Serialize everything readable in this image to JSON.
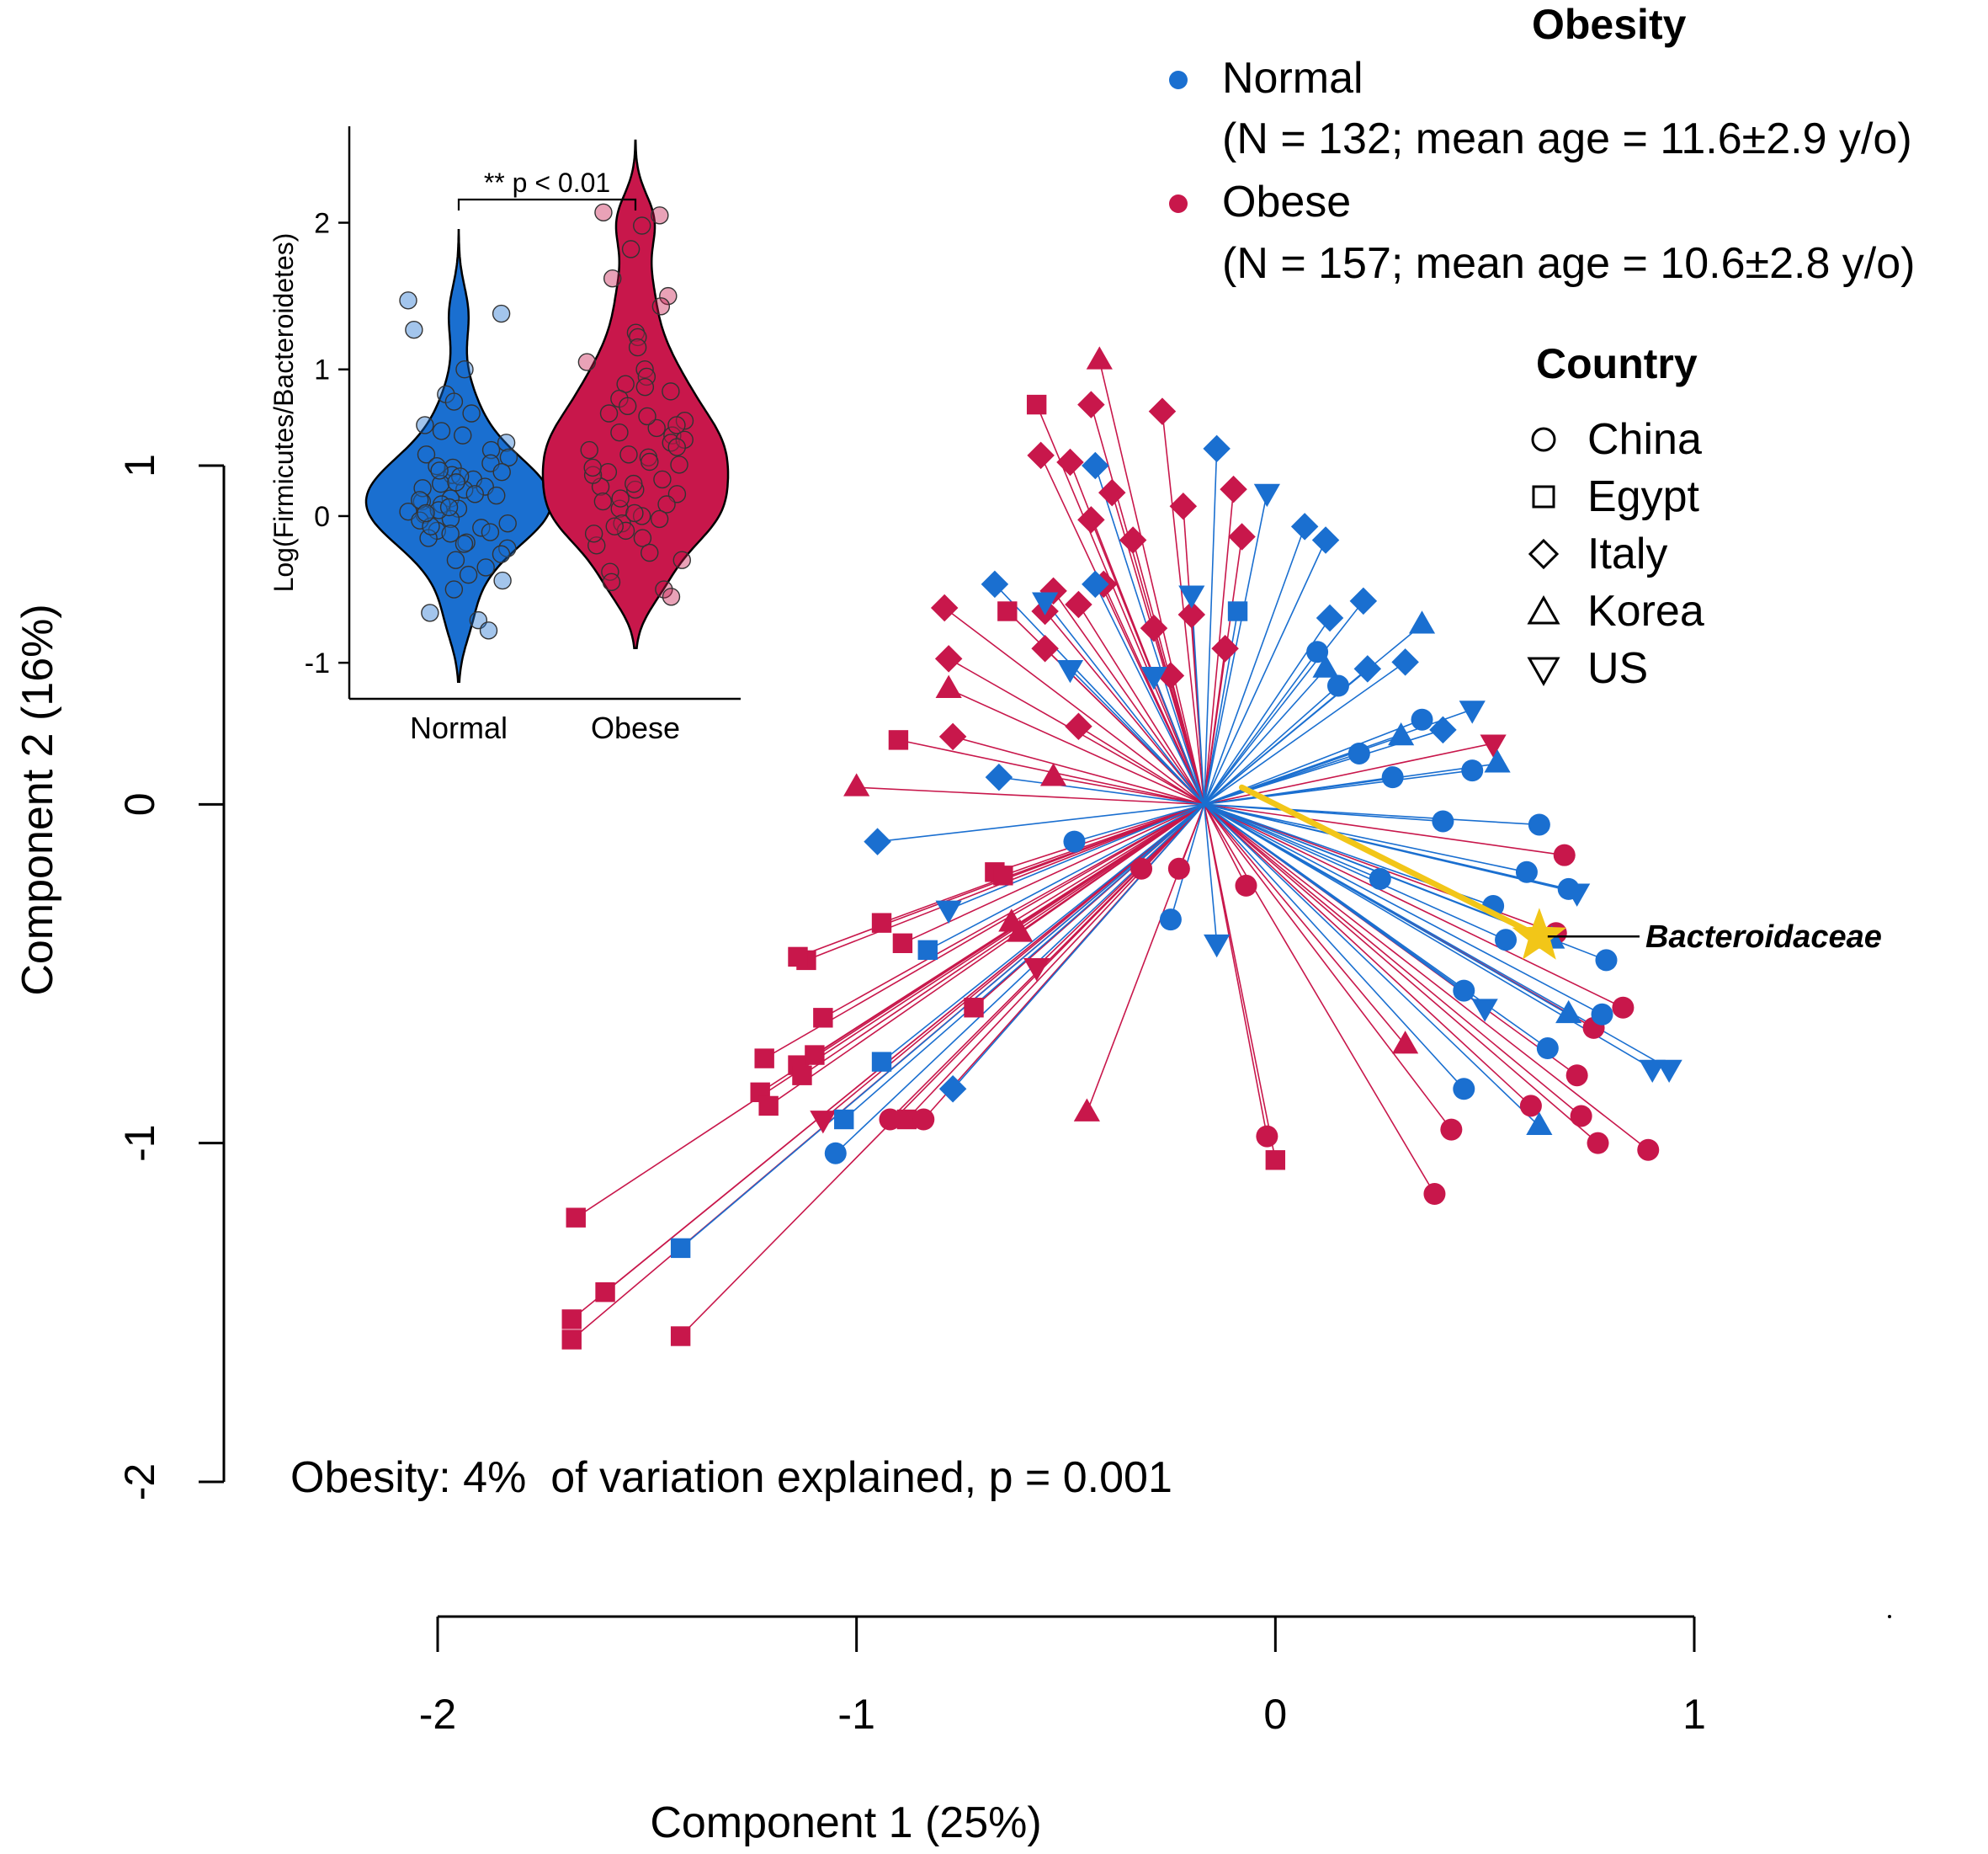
{
  "chart_data": {
    "type": "scatter",
    "subtype": "PCoA biplot with spider lines to group centroid",
    "xlabel": "Component 1 (25%)",
    "ylabel": "Component 2 (16%)",
    "xlim": [
      -2,
      1
    ],
    "ylim": [
      -2,
      1
    ],
    "xticks": [
      "-2",
      "-1",
      "0",
      "1"
    ],
    "yticks": [
      "-2",
      "-1",
      "0",
      "1"
    ],
    "centroid": [
      -0.17,
      0.0
    ],
    "annotation": "Obesity: 4%  of variation explained, p = 0.001",
    "vector": {
      "label": "Bacteroidaceae",
      "from": [
        -0.08,
        0.05
      ],
      "to": [
        0.63,
        -0.39
      ],
      "color": "#f2c618"
    },
    "legend_obesity": {
      "title": "Obesity",
      "items": [
        {
          "name": "Normal",
          "detail": "(N = 132; mean age = 11.6±2.9 y/o)",
          "color": "#1a6fd0"
        },
        {
          "name": "Obese",
          "detail": "(N = 157; mean age = 10.6±2.8 y/o)",
          "color": "#c8174b"
        }
      ]
    },
    "legend_country": {
      "title": "Country",
      "items": [
        {
          "name": "China",
          "shape": "circle"
        },
        {
          "name": "Egypt",
          "shape": "square"
        },
        {
          "name": "Italy",
          "shape": "diamond"
        },
        {
          "name": "Korea",
          "shape": "triangle"
        },
        {
          "name": "US",
          "shape": "triangle-down"
        }
      ]
    },
    "series": [
      {
        "name": "Obese",
        "color": "#c8174b",
        "points": [
          {
            "x": -1.67,
            "y": -1.22,
            "shape": "square"
          },
          {
            "x": -1.68,
            "y": -1.52,
            "shape": "square"
          },
          {
            "x": -1.68,
            "y": -1.58,
            "shape": "square"
          },
          {
            "x": -1.6,
            "y": -1.44,
            "shape": "square"
          },
          {
            "x": -1.42,
            "y": -1.57,
            "shape": "square"
          },
          {
            "x": -1.22,
            "y": -0.75,
            "shape": "square"
          },
          {
            "x": -1.23,
            "y": -0.85,
            "shape": "square"
          },
          {
            "x": -1.21,
            "y": -0.89,
            "shape": "square"
          },
          {
            "x": -1.14,
            "y": -0.77,
            "shape": "square"
          },
          {
            "x": -1.13,
            "y": -0.8,
            "shape": "square"
          },
          {
            "x": -1.08,
            "y": -0.63,
            "shape": "square"
          },
          {
            "x": -1.1,
            "y": -0.74,
            "shape": "square"
          },
          {
            "x": -1.12,
            "y": -0.46,
            "shape": "square"
          },
          {
            "x": -1.14,
            "y": -0.45,
            "shape": "square"
          },
          {
            "x": -0.94,
            "y": -0.35,
            "shape": "square"
          },
          {
            "x": -0.89,
            "y": -0.41,
            "shape": "square"
          },
          {
            "x": -0.88,
            "y": -0.93,
            "shape": "square"
          },
          {
            "x": -0.72,
            "y": -0.6,
            "shape": "square"
          },
          {
            "x": -0.67,
            "y": -0.2,
            "shape": "square"
          },
          {
            "x": -0.65,
            "y": -0.21,
            "shape": "square"
          },
          {
            "x": -0.9,
            "y": 0.19,
            "shape": "square"
          },
          {
            "x": -0.64,
            "y": 0.57,
            "shape": "square"
          },
          {
            "x": -0.57,
            "y": 1.18,
            "shape": "square"
          },
          {
            "x": 0.0,
            "y": -1.05,
            "shape": "square"
          },
          {
            "x": -1.0,
            "y": 0.05,
            "shape": "triangle"
          },
          {
            "x": -0.53,
            "y": 0.08,
            "shape": "triangle"
          },
          {
            "x": -0.63,
            "y": -0.35,
            "shape": "triangle"
          },
          {
            "x": -0.61,
            "y": -0.38,
            "shape": "triangle"
          },
          {
            "x": -0.45,
            "y": -0.91,
            "shape": "triangle"
          },
          {
            "x": -0.42,
            "y": 1.31,
            "shape": "triangle"
          },
          {
            "x": 0.31,
            "y": -0.71,
            "shape": "triangle"
          },
          {
            "x": -0.78,
            "y": 0.34,
            "shape": "triangle"
          },
          {
            "x": -1.08,
            "y": -0.93,
            "shape": "triangle-down"
          },
          {
            "x": -0.57,
            "y": -0.48,
            "shape": "triangle-down"
          },
          {
            "x": 0.52,
            "y": 0.18,
            "shape": "triangle-down"
          },
          {
            "x": -0.79,
            "y": 0.58,
            "shape": "diamond"
          },
          {
            "x": -0.78,
            "y": 0.43,
            "shape": "diamond"
          },
          {
            "x": -0.55,
            "y": 0.46,
            "shape": "diamond"
          },
          {
            "x": -0.53,
            "y": 0.63,
            "shape": "diamond"
          },
          {
            "x": -0.47,
            "y": 0.59,
            "shape": "diamond"
          },
          {
            "x": -0.44,
            "y": 1.18,
            "shape": "diamond"
          },
          {
            "x": -0.27,
            "y": 1.16,
            "shape": "diamond"
          },
          {
            "x": -0.56,
            "y": 1.03,
            "shape": "diamond"
          },
          {
            "x": -0.49,
            "y": 1.01,
            "shape": "diamond"
          },
          {
            "x": -0.39,
            "y": 0.92,
            "shape": "diamond"
          },
          {
            "x": -0.47,
            "y": 0.23,
            "shape": "diamond"
          },
          {
            "x": -0.44,
            "y": 0.84,
            "shape": "diamond"
          },
          {
            "x": -0.34,
            "y": 0.78,
            "shape": "diamond"
          },
          {
            "x": -0.22,
            "y": 0.88,
            "shape": "diamond"
          },
          {
            "x": -0.1,
            "y": 0.93,
            "shape": "diamond"
          },
          {
            "x": -0.08,
            "y": 0.79,
            "shape": "diamond"
          },
          {
            "x": -0.2,
            "y": 0.56,
            "shape": "diamond"
          },
          {
            "x": -0.12,
            "y": 0.46,
            "shape": "diamond"
          },
          {
            "x": -0.41,
            "y": 0.65,
            "shape": "diamond"
          },
          {
            "x": -0.29,
            "y": 0.52,
            "shape": "diamond"
          },
          {
            "x": -0.25,
            "y": 0.38,
            "shape": "diamond"
          },
          {
            "x": -0.77,
            "y": 0.2,
            "shape": "diamond"
          },
          {
            "x": -0.55,
            "y": 0.57,
            "shape": "diamond"
          },
          {
            "x": -0.92,
            "y": -0.93,
            "shape": "circle"
          },
          {
            "x": -0.84,
            "y": -0.93,
            "shape": "circle"
          },
          {
            "x": -0.02,
            "y": -0.98,
            "shape": "circle"
          },
          {
            "x": 0.38,
            "y": -1.15,
            "shape": "circle"
          },
          {
            "x": 0.42,
            "y": -0.96,
            "shape": "circle"
          },
          {
            "x": 0.61,
            "y": -0.89,
            "shape": "circle"
          },
          {
            "x": 0.73,
            "y": -0.92,
            "shape": "circle"
          },
          {
            "x": 0.77,
            "y": -1.0,
            "shape": "circle"
          },
          {
            "x": 0.89,
            "y": -1.02,
            "shape": "circle"
          },
          {
            "x": 0.72,
            "y": -0.8,
            "shape": "circle"
          },
          {
            "x": 0.76,
            "y": -0.66,
            "shape": "circle"
          },
          {
            "x": 0.83,
            "y": -0.6,
            "shape": "circle"
          },
          {
            "x": 0.67,
            "y": -0.38,
            "shape": "circle"
          },
          {
            "x": -0.23,
            "y": -0.19,
            "shape": "circle"
          },
          {
            "x": -0.32,
            "y": -0.19,
            "shape": "circle"
          },
          {
            "x": -0.07,
            "y": -0.24,
            "shape": "circle"
          },
          {
            "x": 0.69,
            "y": -0.15,
            "shape": "circle"
          }
        ]
      },
      {
        "name": "Normal",
        "color": "#1a6fd0",
        "points": [
          {
            "x": -1.42,
            "y": -1.31,
            "shape": "square"
          },
          {
            "x": -1.03,
            "y": -0.93,
            "shape": "square"
          },
          {
            "x": -0.83,
            "y": -0.43,
            "shape": "square"
          },
          {
            "x": -0.94,
            "y": -0.76,
            "shape": "square"
          },
          {
            "x": -0.09,
            "y": 0.57,
            "shape": "square"
          },
          {
            "x": -1.05,
            "y": -1.03,
            "shape": "circle"
          },
          {
            "x": -0.48,
            "y": -0.11,
            "shape": "circle"
          },
          {
            "x": -0.25,
            "y": -0.34,
            "shape": "circle"
          },
          {
            "x": 0.45,
            "y": -0.55,
            "shape": "circle"
          },
          {
            "x": 0.45,
            "y": -0.84,
            "shape": "circle"
          },
          {
            "x": 0.79,
            "y": -0.46,
            "shape": "circle"
          },
          {
            "x": 0.63,
            "y": -0.06,
            "shape": "circle"
          },
          {
            "x": 0.25,
            "y": -0.22,
            "shape": "circle"
          },
          {
            "x": 0.4,
            "y": -0.05,
            "shape": "circle"
          },
          {
            "x": 0.55,
            "y": -0.4,
            "shape": "circle"
          },
          {
            "x": 0.7,
            "y": -0.25,
            "shape": "circle"
          },
          {
            "x": 0.78,
            "y": -0.62,
            "shape": "circle"
          },
          {
            "x": 0.2,
            "y": 0.15,
            "shape": "circle"
          },
          {
            "x": 0.15,
            "y": 0.35,
            "shape": "circle"
          },
          {
            "x": 0.35,
            "y": 0.25,
            "shape": "circle"
          },
          {
            "x": 0.47,
            "y": 0.1,
            "shape": "circle"
          },
          {
            "x": 0.6,
            "y": -0.2,
            "shape": "circle"
          },
          {
            "x": 0.28,
            "y": 0.08,
            "shape": "circle"
          },
          {
            "x": 0.1,
            "y": 0.45,
            "shape": "circle"
          },
          {
            "x": 0.52,
            "y": -0.3,
            "shape": "circle"
          },
          {
            "x": 0.65,
            "y": -0.72,
            "shape": "circle"
          },
          {
            "x": -0.66,
            "y": 0.08,
            "shape": "diamond"
          },
          {
            "x": -0.95,
            "y": -0.11,
            "shape": "diamond"
          },
          {
            "x": -0.77,
            "y": -0.84,
            "shape": "diamond"
          },
          {
            "x": -0.67,
            "y": 0.65,
            "shape": "diamond"
          },
          {
            "x": -0.14,
            "y": 1.05,
            "shape": "diamond"
          },
          {
            "x": 0.07,
            "y": 0.82,
            "shape": "diamond"
          },
          {
            "x": 0.21,
            "y": 0.6,
            "shape": "diamond"
          },
          {
            "x": 0.12,
            "y": 0.78,
            "shape": "diamond"
          },
          {
            "x": -0.43,
            "y": 1.0,
            "shape": "diamond"
          },
          {
            "x": -0.43,
            "y": 0.65,
            "shape": "diamond"
          },
          {
            "x": 0.22,
            "y": 0.4,
            "shape": "diamond"
          },
          {
            "x": 0.4,
            "y": 0.22,
            "shape": "diamond"
          },
          {
            "x": 0.31,
            "y": 0.42,
            "shape": "diamond"
          },
          {
            "x": 0.13,
            "y": 0.55,
            "shape": "diamond"
          },
          {
            "x": 0.35,
            "y": 0.53,
            "shape": "triangle"
          },
          {
            "x": 0.53,
            "y": 0.12,
            "shape": "triangle"
          },
          {
            "x": 0.63,
            "y": -0.95,
            "shape": "triangle"
          },
          {
            "x": 0.7,
            "y": -0.62,
            "shape": "triangle"
          },
          {
            "x": 0.12,
            "y": 0.4,
            "shape": "triangle"
          },
          {
            "x": 0.3,
            "y": 0.2,
            "shape": "triangle"
          },
          {
            "x": 0.66,
            "y": -0.4,
            "shape": "triangle"
          },
          {
            "x": -0.78,
            "y": -0.31,
            "shape": "triangle-down"
          },
          {
            "x": -0.55,
            "y": 0.6,
            "shape": "triangle-down"
          },
          {
            "x": -0.49,
            "y": 0.4,
            "shape": "triangle-down"
          },
          {
            "x": -0.29,
            "y": 0.38,
            "shape": "triangle-down"
          },
          {
            "x": -0.02,
            "y": 0.92,
            "shape": "triangle-down"
          },
          {
            "x": -0.14,
            "y": -0.41,
            "shape": "triangle-down"
          },
          {
            "x": 0.47,
            "y": 0.28,
            "shape": "triangle-down"
          },
          {
            "x": 0.9,
            "y": -0.78,
            "shape": "triangle-down"
          },
          {
            "x": 0.94,
            "y": -0.78,
            "shape": "triangle-down"
          },
          {
            "x": 0.72,
            "y": -0.26,
            "shape": "triangle-down"
          },
          {
            "x": -0.2,
            "y": 0.62,
            "shape": "triangle-down"
          },
          {
            "x": 0.5,
            "y": -0.6,
            "shape": "triangle-down"
          }
        ]
      }
    ],
    "inset": {
      "type": "violin",
      "ylabel": "Log(Firmicutes/Bacteroidetes)",
      "categories": [
        "Normal",
        "Obese"
      ],
      "colors": [
        "#1a6fd0",
        "#c8174b"
      ],
      "ylim": [
        -1.2,
        2.6
      ],
      "yticks": [
        "-1",
        "0",
        "1",
        "2"
      ],
      "significance": "** p < 0.01",
      "values": [
        [
          1.47,
          1.38,
          1.27,
          1.0,
          0.83,
          0.78,
          0.7,
          0.62,
          0.58,
          0.55,
          0.5,
          0.45,
          0.42,
          0.4,
          0.36,
          0.33,
          0.3,
          0.28,
          0.25,
          0.22,
          0.2,
          0.18,
          0.15,
          0.12,
          0.1,
          0.08,
          0.05,
          0.03,
          0.01,
          -0.02,
          -0.05,
          -0.08,
          -0.1,
          -0.12,
          -0.15,
          -0.18,
          -0.22,
          -0.26,
          -0.3,
          -0.35,
          -0.4,
          -0.44,
          -0.5,
          -0.66,
          -0.71,
          -0.78,
          0.34,
          0.27,
          0.19,
          0.11,
          0.04,
          -0.03,
          -0.11,
          -0.19,
          0.06,
          0.14,
          0.23,
          -0.07,
          0.31,
          0.02
        ],
        [
          2.07,
          2.05,
          1.98,
          1.82,
          1.62,
          1.5,
          1.43,
          1.25,
          1.22,
          1.15,
          1.05,
          1.0,
          0.95,
          0.9,
          0.85,
          0.8,
          0.75,
          0.7,
          0.65,
          0.6,
          0.55,
          0.5,
          0.45,
          0.4,
          0.35,
          0.3,
          0.25,
          0.2,
          0.15,
          0.1,
          0.05,
          0.0,
          -0.05,
          -0.1,
          -0.15,
          -0.2,
          -0.25,
          -0.3,
          -0.38,
          -0.45,
          -0.5,
          -0.55,
          0.37,
          0.28,
          0.18,
          0.08,
          -0.02,
          -0.12,
          0.42,
          0.52,
          0.62,
          0.22,
          0.12,
          0.02,
          0.33,
          0.47,
          -0.07,
          0.57,
          0.68,
          0.88
        ]
      ]
    }
  }
}
